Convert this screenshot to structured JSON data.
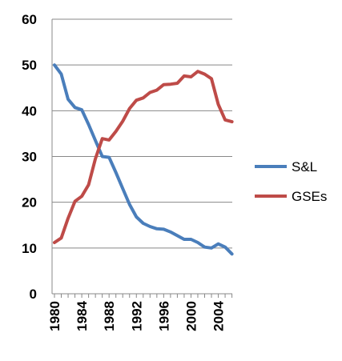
{
  "chart_data": {
    "type": "line",
    "title": "",
    "xlabel": "",
    "ylabel": "",
    "ylim": [
      0,
      60
    ],
    "y_ticks": [
      "0",
      "10",
      "20",
      "30",
      "40",
      "50",
      "60"
    ],
    "x_ticks": [
      "1980",
      "1984",
      "1988",
      "1992",
      "1996",
      "2000",
      "2004"
    ],
    "grid": "horizontal",
    "legend_position": "right",
    "x": [
      1980,
      1981,
      1982,
      1983,
      1984,
      1985,
      1986,
      1987,
      1988,
      1989,
      1990,
      1991,
      1992,
      1993,
      1994,
      1995,
      1996,
      1997,
      1998,
      1999,
      2000,
      2001,
      2002,
      2003,
      2004,
      2005,
      2006
    ],
    "series": [
      {
        "name": "S&L",
        "color": "#4a7ebb",
        "values": [
          50,
          48,
          42.5,
          40.7,
          40.2,
          37,
          33.5,
          30,
          29.8,
          26.5,
          23,
          19.5,
          16.8,
          15.4,
          14.7,
          14.2,
          14.1,
          13.5,
          12.7,
          11.9,
          11.9,
          11.2,
          10.2,
          10,
          10.9,
          10.2,
          8.7
        ]
      },
      {
        "name": "GSEs",
        "color": "#be4b48",
        "values": [
          11.2,
          12.2,
          16.5,
          20.2,
          21.3,
          23.8,
          29.5,
          33.9,
          33.6,
          35.5,
          37.7,
          40.5,
          42.3,
          42.8,
          44,
          44.5,
          45.7,
          45.8,
          46,
          47.6,
          47.4,
          48.6,
          48,
          47,
          41.4,
          38,
          37.6
        ]
      }
    ]
  }
}
